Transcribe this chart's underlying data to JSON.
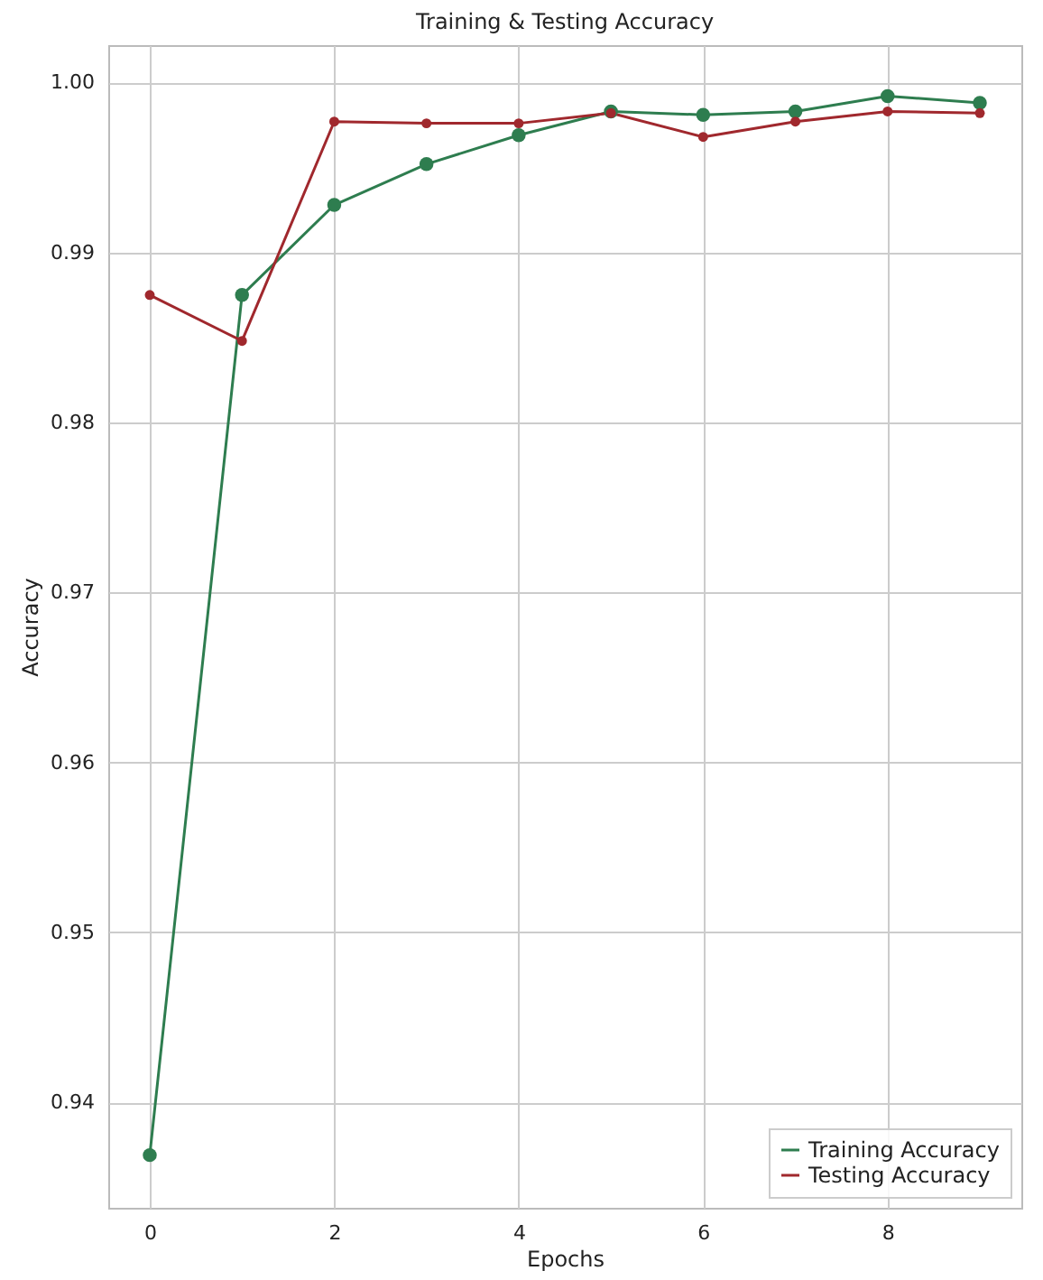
{
  "chart_data": {
    "type": "line",
    "title": "Training & Testing Accuracy",
    "xlabel": "Epochs",
    "ylabel": "Accuracy",
    "x": [
      0,
      1,
      2,
      3,
      4,
      5,
      6,
      7,
      8,
      9
    ],
    "series": [
      {
        "name": "Training Accuracy",
        "color": "#2e7d4f",
        "values": [
          0.9369,
          0.9875,
          0.9928,
          0.9952,
          0.9969,
          0.9983,
          0.9981,
          0.9983,
          0.9992,
          0.9988
        ]
      },
      {
        "name": "Testing Accuracy",
        "color": "#a0282d",
        "values": [
          0.9875,
          0.9848,
          0.9977,
          0.9976,
          0.9976,
          0.9982,
          0.9968,
          0.9977,
          0.9983,
          0.9982
        ]
      }
    ],
    "xlim": [
      -0.45,
      9.45
    ],
    "xticks": [
      0,
      2,
      4,
      6,
      8
    ],
    "ylim": [
      0.9338,
      1.0022
    ],
    "yticks": [
      0.94,
      0.95,
      0.96,
      0.97,
      0.98,
      0.99,
      {
        "value": 1.0,
        "label": "1.00"
      }
    ],
    "grid": true,
    "legend": "bottom right",
    "marker": "circle",
    "line_style": "solid"
  }
}
